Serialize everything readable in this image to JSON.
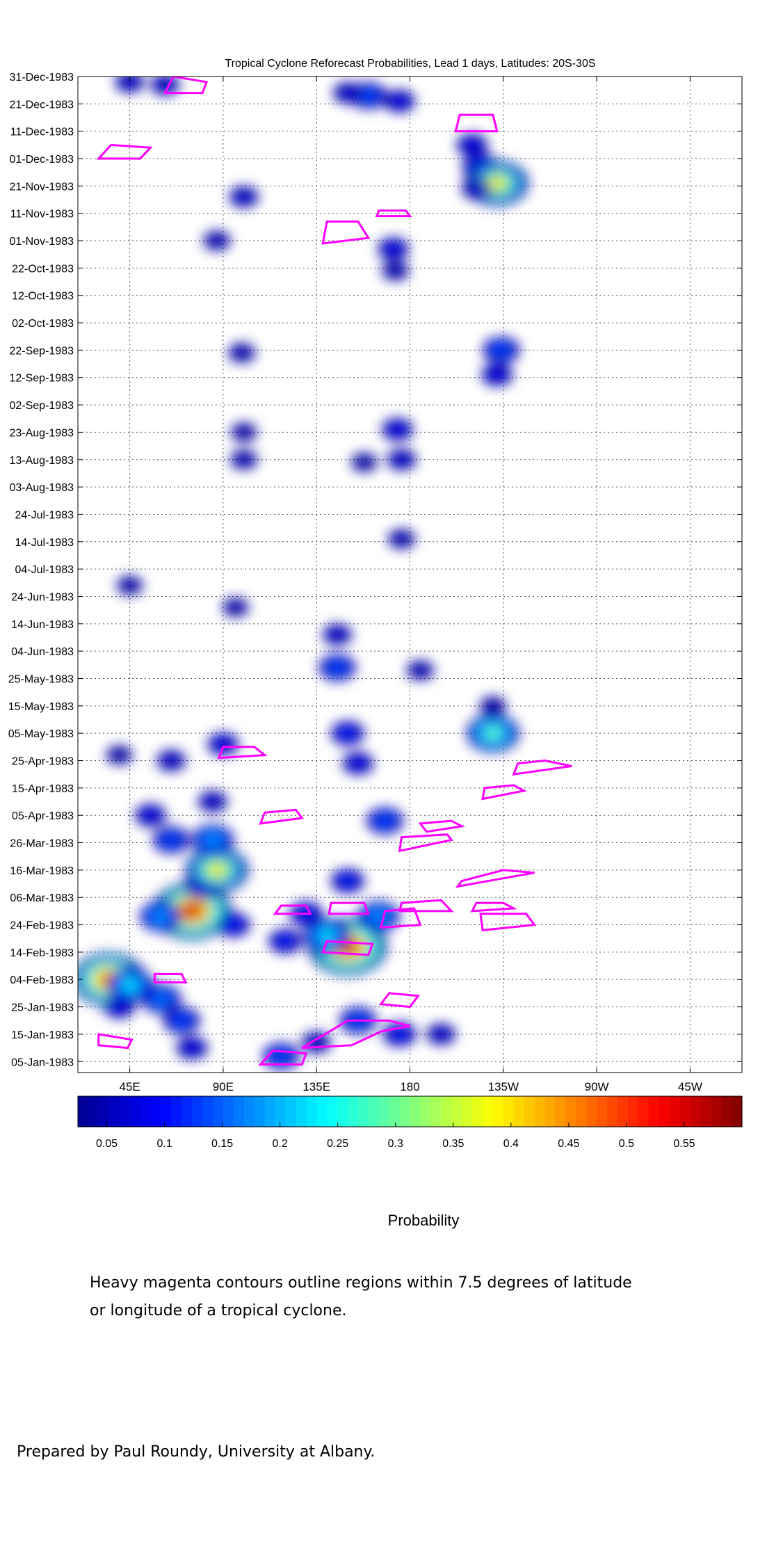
{
  "chart_data": {
    "type": "heatmap",
    "title": "Tropical Cyclone Reforecast Probabilities, Lead 1 days, Latitudes: 20S-30S",
    "x_ticks": [
      {
        "lon": 45,
        "label": "45E"
      },
      {
        "lon": 90,
        "label": "90E"
      },
      {
        "lon": 135,
        "label": "135E"
      },
      {
        "lon": 180,
        "label": "180"
      },
      {
        "lon": 225,
        "label": "135W"
      },
      {
        "lon": 270,
        "label": "90W"
      },
      {
        "lon": 315,
        "label": "45W"
      }
    ],
    "x_range": [
      20,
      340
    ],
    "y_range": [
      "1983-01-01",
      "1983-12-31"
    ],
    "y_ticks": [
      "05-Jan-1983",
      "15-Jan-1983",
      "25-Jan-1983",
      "04-Feb-1983",
      "14-Feb-1983",
      "24-Feb-1983",
      "06-Mar-1983",
      "16-Mar-1983",
      "26-Mar-1983",
      "05-Apr-1983",
      "15-Apr-1983",
      "25-Apr-1983",
      "05-May-1983",
      "15-May-1983",
      "25-May-1983",
      "04-Jun-1983",
      "14-Jun-1983",
      "24-Jun-1983",
      "04-Jul-1983",
      "14-Jul-1983",
      "24-Jul-1983",
      "03-Aug-1983",
      "13-Aug-1983",
      "23-Aug-1983",
      "02-Sep-1983",
      "12-Sep-1983",
      "22-Sep-1983",
      "02-Oct-1983",
      "12-Oct-1983",
      "22-Oct-1983",
      "01-Nov-1983",
      "11-Nov-1983",
      "21-Nov-1983",
      "01-Dec-1983",
      "11-Dec-1983",
      "21-Dec-1983",
      "31-Dec-1983"
    ],
    "grid": true,
    "colorbar": {
      "label": "Probability",
      "range": [
        0.025,
        0.6
      ],
      "tick_values": [
        0.05,
        0.1,
        0.15,
        0.2,
        0.25,
        0.3,
        0.35,
        0.4,
        0.45,
        0.5,
        0.55
      ],
      "tick_labels": [
        "0.05",
        "0.1",
        "0.15",
        "0.2",
        "0.25",
        "0.3",
        "0.35",
        "0.4",
        "0.45",
        "0.5",
        "0.55"
      ],
      "colors": [
        "#00008f",
        "#0000ff",
        "#0080ff",
        "#00ffff",
        "#80ff80",
        "#ffff00",
        "#ff8000",
        "#ff0000",
        "#800000"
      ]
    },
    "contour_color": "#ff00ff",
    "blobs": [
      {
        "lon": 35,
        "date": "1983-02-04",
        "p": 0.5
      },
      {
        "lon": 45,
        "date": "1983-02-02",
        "p": 0.25
      },
      {
        "lon": 60,
        "date": "1983-01-28",
        "p": 0.18
      },
      {
        "lon": 70,
        "date": "1983-01-20",
        "p": 0.15
      },
      {
        "lon": 75,
        "date": "1983-01-10",
        "p": 0.1
      },
      {
        "lon": 40,
        "date": "1983-01-25",
        "p": 0.1
      },
      {
        "lon": 75,
        "date": "1983-03-01",
        "p": 0.55
      },
      {
        "lon": 60,
        "date": "1983-02-27",
        "p": 0.2
      },
      {
        "lon": 95,
        "date": "1983-02-24",
        "p": 0.12
      },
      {
        "lon": 80,
        "date": "1983-03-10",
        "p": 0.15
      },
      {
        "lon": 87,
        "date": "1983-03-16",
        "p": 0.4
      },
      {
        "lon": 65,
        "date": "1983-03-27",
        "p": 0.15
      },
      {
        "lon": 85,
        "date": "1983-03-27",
        "p": 0.2
      },
      {
        "lon": 55,
        "date": "1983-04-05",
        "p": 0.1
      },
      {
        "lon": 85,
        "date": "1983-04-10",
        "p": 0.08
      },
      {
        "lon": 65,
        "date": "1983-04-25",
        "p": 0.08
      },
      {
        "lon": 90,
        "date": "1983-05-01",
        "p": 0.1
      },
      {
        "lon": 40,
        "date": "1983-04-27",
        "p": 0.05
      },
      {
        "lon": 150,
        "date": "1983-02-16",
        "p": 0.55
      },
      {
        "lon": 140,
        "date": "1983-02-20",
        "p": 0.25
      },
      {
        "lon": 120,
        "date": "1983-02-18",
        "p": 0.12
      },
      {
        "lon": 165,
        "date": "1983-02-27",
        "p": 0.2
      },
      {
        "lon": 130,
        "date": "1983-02-28",
        "p": 0.12
      },
      {
        "lon": 150,
        "date": "1983-03-12",
        "p": 0.12
      },
      {
        "lon": 168,
        "date": "1983-04-03",
        "p": 0.15
      },
      {
        "lon": 155,
        "date": "1983-04-24",
        "p": 0.1
      },
      {
        "lon": 150,
        "date": "1983-05-05",
        "p": 0.12
      },
      {
        "lon": 145,
        "date": "1983-05-29",
        "p": 0.15
      },
      {
        "lon": 145,
        "date": "1983-06-10",
        "p": 0.08
      },
      {
        "lon": 185,
        "date": "1983-05-28",
        "p": 0.06
      },
      {
        "lon": 155,
        "date": "1983-01-20",
        "p": 0.15
      },
      {
        "lon": 175,
        "date": "1983-01-15",
        "p": 0.12
      },
      {
        "lon": 135,
        "date": "1983-01-12",
        "p": 0.08
      },
      {
        "lon": 118,
        "date": "1983-01-07",
        "p": 0.15
      },
      {
        "lon": 195,
        "date": "1983-01-15",
        "p": 0.08
      },
      {
        "lon": 160,
        "date": "1983-12-24",
        "p": 0.15
      },
      {
        "lon": 175,
        "date": "1983-12-22",
        "p": 0.1
      },
      {
        "lon": 150,
        "date": "1983-12-25",
        "p": 0.08
      },
      {
        "lon": 45,
        "date": "1983-12-29",
        "p": 0.08
      },
      {
        "lon": 62,
        "date": "1983-12-28",
        "p": 0.08
      },
      {
        "lon": 214,
        "date": "1983-11-28",
        "p": 0.15
      },
      {
        "lon": 210,
        "date": "1983-12-06",
        "p": 0.1
      },
      {
        "lon": 222,
        "date": "1983-11-22",
        "p": 0.4
      },
      {
        "lon": 212,
        "date": "1983-11-20",
        "p": 0.08
      },
      {
        "lon": 100,
        "date": "1983-11-17",
        "p": 0.08
      },
      {
        "lon": 87,
        "date": "1983-11-01",
        "p": 0.06
      },
      {
        "lon": 172,
        "date": "1983-10-29",
        "p": 0.1
      },
      {
        "lon": 173,
        "date": "1983-10-21",
        "p": 0.06
      },
      {
        "lon": 224,
        "date": "1983-09-22",
        "p": 0.15
      },
      {
        "lon": 222,
        "date": "1983-09-13",
        "p": 0.1
      },
      {
        "lon": 99,
        "date": "1983-09-21",
        "p": 0.06
      },
      {
        "lon": 174,
        "date": "1983-08-24",
        "p": 0.1
      },
      {
        "lon": 176,
        "date": "1983-08-13",
        "p": 0.08
      },
      {
        "lon": 100,
        "date": "1983-08-13",
        "p": 0.06
      },
      {
        "lon": 100,
        "date": "1983-08-23",
        "p": 0.05
      },
      {
        "lon": 158,
        "date": "1983-08-12",
        "p": 0.05
      },
      {
        "lon": 176,
        "date": "1983-07-15",
        "p": 0.06
      },
      {
        "lon": 45,
        "date": "1983-06-28",
        "p": 0.05
      },
      {
        "lon": 220,
        "date": "1983-05-05",
        "p": 0.3
      },
      {
        "lon": 220,
        "date": "1983-05-15",
        "p": 0.05
      },
      {
        "lon": 96,
        "date": "1983-06-20",
        "p": 0.05
      }
    ],
    "contours": [
      [
        [
          30,
          "1983-01-15"
        ],
        [
          46,
          "1983-01-13"
        ],
        [
          44,
          "1983-01-10"
        ],
        [
          30,
          "1983-01-11"
        ]
      ],
      [
        [
          57,
          "1983-02-06"
        ],
        [
          70,
          "1983-02-06"
        ],
        [
          72,
          "1983-02-03"
        ],
        [
          57,
          "1983-02-03"
        ]
      ],
      [
        [
          108,
          "1983-01-04"
        ],
        [
          128,
          "1983-01-04"
        ],
        [
          130,
          "1983-01-08"
        ],
        [
          114,
          "1983-01-09"
        ]
      ],
      [
        [
          128,
          "1983-01-10"
        ],
        [
          152,
          "1983-01-11"
        ],
        [
          166,
          "1983-01-16"
        ],
        [
          180,
          "1983-01-18"
        ],
        [
          170,
          "1983-01-20"
        ],
        [
          150,
          "1983-01-20"
        ]
      ],
      [
        [
          166,
          "1983-01-26"
        ],
        [
          180,
          "1983-01-25"
        ],
        [
          184,
          "1983-01-29"
        ],
        [
          170,
          "1983-01-30"
        ]
      ],
      [
        [
          138,
          "1983-02-14"
        ],
        [
          160,
          "1983-02-13"
        ],
        [
          162,
          "1983-02-17"
        ],
        [
          140,
          "1983-02-18"
        ]
      ],
      [
        [
          115,
          "1983-02-28"
        ],
        [
          132,
          "1983-02-28"
        ],
        [
          130,
          "1983-03-03"
        ],
        [
          118,
          "1983-03-03"
        ]
      ],
      [
        [
          141,
          "1983-02-28"
        ],
        [
          160,
          "1983-02-28"
        ],
        [
          158,
          "1983-03-04"
        ],
        [
          142,
          "1983-03-04"
        ]
      ],
      [
        [
          166,
          "1983-02-23"
        ],
        [
          185,
          "1983-02-24"
        ],
        [
          182,
          "1983-03-02"
        ],
        [
          168,
          "1983-03-01"
        ]
      ],
      [
        [
          175,
          "1983-03-01"
        ],
        [
          200,
          "1983-03-01"
        ],
        [
          195,
          "1983-03-05"
        ],
        [
          176,
          "1983-03-04"
        ]
      ],
      [
        [
          215,
          "1983-02-22"
        ],
        [
          240,
          "1983-02-24"
        ],
        [
          236,
          "1983-02-28"
        ],
        [
          214,
          "1983-02-28"
        ]
      ],
      [
        [
          210,
          "1983-03-01"
        ],
        [
          230,
          "1983-03-02"
        ],
        [
          225,
          "1983-03-04"
        ],
        [
          212,
          "1983-03-04"
        ]
      ],
      [
        [
          203,
          "1983-03-10"
        ],
        [
          225,
          "1983-03-13"
        ],
        [
          240,
          "1983-03-15"
        ],
        [
          225,
          "1983-03-16"
        ],
        [
          205,
          "1983-03-12"
        ]
      ],
      [
        [
          175,
          "1983-03-23"
        ],
        [
          200,
          "1983-03-27"
        ],
        [
          198,
          "1983-03-29"
        ],
        [
          176,
          "1983-03-28"
        ]
      ],
      [
        [
          188,
          "1983-03-30"
        ],
        [
          205,
          "1983-04-01"
        ],
        [
          200,
          "1983-04-03"
        ],
        [
          185,
          "1983-04-02"
        ]
      ],
      [
        [
          108,
          "1983-04-02"
        ],
        [
          128,
          "1983-04-04"
        ],
        [
          125,
          "1983-04-07"
        ],
        [
          110,
          "1983-04-06"
        ]
      ],
      [
        [
          215,
          "1983-04-11"
        ],
        [
          235,
          "1983-04-14"
        ],
        [
          230,
          "1983-04-16"
        ],
        [
          216,
          "1983-04-15"
        ]
      ],
      [
        [
          230,
          "1983-04-20"
        ],
        [
          258,
          "1983-04-23"
        ],
        [
          245,
          "1983-04-25"
        ],
        [
          232,
          "1983-04-24"
        ]
      ],
      [
        [
          88,
          "1983-04-26"
        ],
        [
          110,
          "1983-04-27"
        ],
        [
          105,
          "1983-04-30"
        ],
        [
          90,
          "1983-04-30"
        ]
      ],
      [
        [
          138,
          "1983-10-31"
        ],
        [
          160,
          "1983-11-02"
        ],
        [
          155,
          "1983-11-08"
        ],
        [
          140,
          "1983-11-08"
        ]
      ],
      [
        [
          164,
          "1983-11-10"
        ],
        [
          180,
          "1983-11-10"
        ],
        [
          178,
          "1983-11-12"
        ],
        [
          165,
          "1983-11-12"
        ]
      ],
      [
        [
          30,
          "1983-12-01"
        ],
        [
          50,
          "1983-12-01"
        ],
        [
          55,
          "1983-12-05"
        ],
        [
          36,
          "1983-12-06"
        ]
      ],
      [
        [
          202,
          "1983-12-11"
        ],
        [
          222,
          "1983-12-11"
        ],
        [
          220,
          "1983-12-17"
        ],
        [
          204,
          "1983-12-17"
        ]
      ],
      [
        [
          62,
          "1983-12-25"
        ],
        [
          80,
          "1983-12-25"
        ],
        [
          82,
          "1983-12-29"
        ],
        [
          66,
          "1983-12-31"
        ]
      ]
    ]
  },
  "colorbar_label": "Probability",
  "caption_line1": "Heavy magenta contours outline regions within 7.5 degrees of latitude",
  "caption_line2": "or longitude of a tropical cyclone.",
  "credit": "Prepared by Paul Roundy, University at Albany."
}
